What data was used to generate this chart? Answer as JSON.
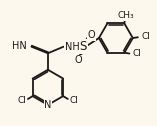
{
  "bg_color": "#fdf8ed",
  "bond_color": "#1a1a1a",
  "text_color": "#1a1a1a",
  "bond_width": 1.3,
  "figsize": [
    1.57,
    1.26
  ],
  "dpi": 100,
  "xlim": [
    0,
    10
  ],
  "ylim": [
    0,
    8
  ]
}
